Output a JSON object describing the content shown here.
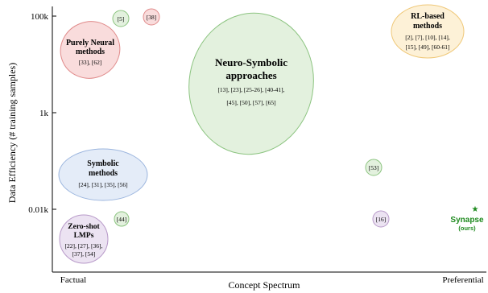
{
  "axes": {
    "ylabel": "Data Efficiency (# training samples)",
    "xlabel": "Concept Spectrum",
    "yticks": [
      "100k",
      "1k",
      "0.01k"
    ],
    "xtick_left": "Factual",
    "xtick_right": "Preferential"
  },
  "regions": {
    "purely_neural": {
      "title1": "Purely Neural",
      "title2": "methods",
      "refs": "[33], [62]"
    },
    "neuro_symbolic": {
      "title1": "Neuro-Symbolic",
      "title2": "approaches",
      "refs1": "[13], [23], [25-26], [40-41],",
      "refs2": "[45], [50], [57], [65]"
    },
    "rl_based": {
      "title1": "RL-based",
      "title2": "methods",
      "refs1": "[2], [7], [10], [14],",
      "refs2": "[15], [49], [60-61]"
    },
    "symbolic": {
      "title1": "Symbolic",
      "title2": "methods",
      "refs": "[24], [31], [35], [56]"
    },
    "zero_shot": {
      "title1": "Zero-shot",
      "title2": "LMPs",
      "refs1": "[22], [27], [36],",
      "refs2": "[37], [54]"
    }
  },
  "points": {
    "p5": "[5]",
    "p38": "[38]",
    "p53": "[53]",
    "p44": "[44]",
    "p16": "[16]"
  },
  "synapse": {
    "name": "Synapse",
    "note": "(ours)",
    "marker": "★"
  },
  "colors": {
    "red_fill": "#f9dcdc",
    "red_stroke": "#e08a8a",
    "green_fill": "#e3f1de",
    "green_stroke": "#8cc480",
    "orange_fill": "#fdf1d7",
    "orange_stroke": "#efc879",
    "blue_fill": "#e4ecf8",
    "blue_stroke": "#9bb5de",
    "purple_fill": "#ece3f2",
    "purple_stroke": "#b89ac9",
    "synapse": "#1e8a1e",
    "axis": "#000000"
  }
}
